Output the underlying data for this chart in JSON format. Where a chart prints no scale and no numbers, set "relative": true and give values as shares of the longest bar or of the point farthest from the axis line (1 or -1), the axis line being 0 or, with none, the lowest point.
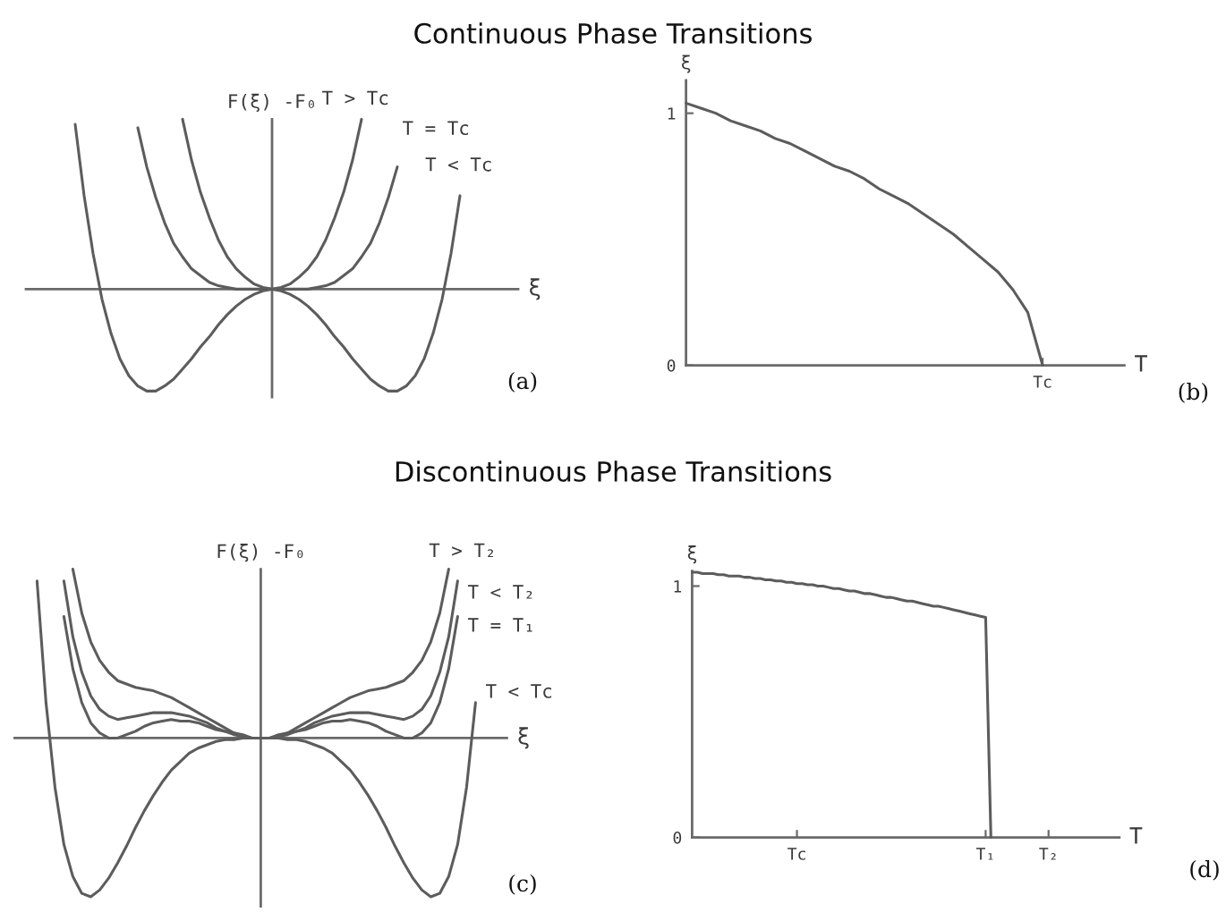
{
  "chart_data": [
    {
      "type": "line",
      "title": "Continuous Phase Transitions",
      "relative": true,
      "xlabel": "ξ",
      "ylabel": "F(ξ) -F₀",
      "annotations": [
        "(a)"
      ],
      "categories": [
        null,
        null,
        null,
        null,
        null,
        null,
        null,
        null,
        null,
        null,
        null,
        null,
        null,
        null,
        null,
        null,
        null,
        null,
        null,
        null,
        null,
        null,
        null,
        null,
        null,
        null,
        null,
        null,
        null,
        null,
        null,
        null,
        null,
        null,
        null,
        null,
        null,
        null,
        null,
        null,
        null,
        null,
        null,
        null,
        null,
        null,
        null,
        null,
        null,
        null,
        null,
        null,
        null,
        null,
        null
      ],
      "series": [
        {
          "name": "T > Tc",
          "color": "#5c5c5c",
          "values": [
            null,
            null,
            null,
            null,
            null,
            null,
            null,
            null,
            null,
            null,
            null,
            null,
            null,
            null,
            null,
            null,
            null,
            1.0,
            0.76,
            0.57,
            0.42,
            0.29,
            0.19,
            0.12,
            0.07,
            0.03,
            0.01,
            0,
            0.01,
            0.03,
            0.07,
            0.12,
            0.19,
            0.29,
            0.42,
            0.57,
            0.76,
            1.0,
            null,
            null,
            null,
            null,
            null,
            null,
            null,
            null,
            null,
            null,
            null,
            null,
            null,
            null,
            null,
            null,
            null
          ]
        },
        {
          "name": "T = Tc",
          "color": "#5c5c5c",
          "values": [
            null,
            null,
            null,
            null,
            null,
            null,
            null,
            null,
            null,
            null,
            null,
            null,
            0.95,
            0.72,
            0.54,
            0.39,
            0.27,
            0.19,
            0.12,
            0.08,
            0.04,
            0.02,
            0.01,
            0,
            0,
            0,
            0,
            0,
            0,
            0,
            0,
            0,
            0.01,
            0.02,
            0.04,
            0.08,
            0.12,
            0.19,
            0.27,
            0.39,
            0.54,
            0.72,
            null,
            null,
            null,
            null,
            null,
            null,
            null,
            null,
            null,
            null,
            null,
            null,
            null
          ]
        },
        {
          "name": "T < Tc",
          "color": "#5c5c5c",
          "values": [
            null,
            null,
            null,
            null,
            null,
            0.97,
            0.55,
            0.21,
            -0.06,
            -0.26,
            -0.41,
            -0.51,
            -0.57,
            -0.6,
            -0.6,
            -0.57,
            -0.53,
            -0.47,
            -0.41,
            -0.34,
            -0.28,
            -0.21,
            -0.15,
            -0.1,
            -0.06,
            -0.03,
            -0.01,
            0,
            -0.01,
            -0.03,
            -0.06,
            -0.1,
            -0.15,
            -0.21,
            -0.28,
            -0.34,
            -0.41,
            -0.47,
            -0.53,
            -0.57,
            -0.6,
            -0.6,
            -0.57,
            -0.51,
            -0.41,
            -0.26,
            -0.06,
            0.21,
            0.55,
            null,
            null,
            null,
            null,
            null,
            null
          ]
        }
      ]
    },
    {
      "type": "line",
      "xlabel": "T",
      "ylabel": "ξ",
      "annotations": [
        "(b)"
      ],
      "ylim": [
        0,
        1.13
      ],
      "yticks": [
        0,
        1
      ],
      "categories": [
        null,
        null,
        null,
        null,
        null,
        null,
        null,
        null,
        null,
        null,
        null,
        null,
        null,
        null,
        null,
        null,
        null,
        null,
        null,
        null,
        null,
        null,
        null,
        null,
        "Tc",
        null,
        null,
        null,
        null,
        null
      ],
      "series": [
        {
          "color": "#5c5c5c",
          "values": [
            1.04,
            1.02,
            1.0,
            0.97,
            0.95,
            0.93,
            0.9,
            0.88,
            0.85,
            0.82,
            0.79,
            0.77,
            0.74,
            0.7,
            0.67,
            0.64,
            0.6,
            0.56,
            0.52,
            0.47,
            0.42,
            0.37,
            0.3,
            0.21,
            0,
            null,
            null,
            null,
            null,
            null
          ]
        }
      ]
    },
    {
      "type": "line",
      "title": "Discontinuous Phase Transitions",
      "relative": true,
      "xlabel": "ξ",
      "ylabel": "F(ξ) -F₀",
      "annotations": [
        "(c)"
      ],
      "categories": [
        null,
        null,
        null,
        null,
        null,
        null,
        null,
        null,
        null,
        null,
        null,
        null,
        null,
        null,
        null,
        null,
        null,
        null,
        null,
        null,
        null,
        null,
        null,
        null,
        null,
        null,
        null,
        null,
        null,
        null,
        null,
        null,
        null,
        null,
        null,
        null,
        null,
        null,
        null,
        null,
        null,
        null,
        null,
        null,
        null,
        null,
        null,
        null,
        null,
        null,
        null,
        null,
        null,
        null,
        null
      ],
      "series": [
        {
          "name": "T > T₂",
          "color": "#5c5c5c",
          "values": [
            null,
            null,
            null,
            null,
            null,
            null,
            1.0,
            0.74,
            0.57,
            0.46,
            0.39,
            0.34,
            0.32,
            0.3,
            0.29,
            0.28,
            0.26,
            0.24,
            0.21,
            0.18,
            0.15,
            0.12,
            0.09,
            0.06,
            0.03,
            0.02,
            0,
            0,
            0,
            0.02,
            0.03,
            0.06,
            0.09,
            0.12,
            0.15,
            0.18,
            0.21,
            0.24,
            0.26,
            0.28,
            0.29,
            0.3,
            0.32,
            0.34,
            0.39,
            0.46,
            0.57,
            0.74,
            1.0,
            null,
            null,
            null,
            null,
            null,
            null
          ]
        },
        {
          "name": "T < T₂",
          "color": "#5c5c5c",
          "values": [
            null,
            null,
            null,
            null,
            null,
            0.93,
            0.6,
            0.39,
            0.25,
            0.17,
            0.13,
            0.11,
            0.12,
            0.13,
            0.14,
            0.15,
            0.15,
            0.15,
            0.14,
            0.13,
            0.11,
            0.09,
            0.06,
            0.04,
            0.03,
            0.01,
            0,
            0,
            0,
            0.01,
            0.03,
            0.04,
            0.06,
            0.09,
            0.11,
            0.13,
            0.14,
            0.15,
            0.15,
            0.15,
            0.14,
            0.13,
            0.12,
            0.11,
            0.13,
            0.17,
            0.25,
            0.39,
            0.6,
            0.93,
            null,
            null,
            null,
            null,
            null
          ]
        },
        {
          "name": "T = T₁",
          "color": "#5c5c5c",
          "values": [
            null,
            null,
            null,
            null,
            null,
            0.72,
            0.41,
            0.21,
            0.09,
            0.03,
            0,
            0,
            0.02,
            0.04,
            0.07,
            0.09,
            0.1,
            0.11,
            0.1,
            0.1,
            0.09,
            0.07,
            0.05,
            0.04,
            0.02,
            0.01,
            0,
            0,
            0,
            0.01,
            0.02,
            0.04,
            0.05,
            0.07,
            0.09,
            0.1,
            0.1,
            0.11,
            0.1,
            0.09,
            0.07,
            0.04,
            0.02,
            0,
            0,
            0.03,
            0.09,
            0.21,
            0.41,
            0.72,
            null,
            null,
            null,
            null,
            null
          ]
        },
        {
          "name": "T < Tc",
          "color": "#5c5c5c",
          "values": [
            null,
            null,
            0.93,
            0.21,
            -0.29,
            -0.63,
            -0.82,
            -0.92,
            -0.94,
            -0.9,
            -0.83,
            -0.74,
            -0.64,
            -0.53,
            -0.43,
            -0.34,
            -0.26,
            -0.19,
            -0.14,
            -0.09,
            -0.06,
            -0.04,
            -0.02,
            -0.01,
            -0.01,
            0,
            0,
            0,
            0,
            0,
            -0.01,
            -0.01,
            -0.02,
            -0.04,
            -0.06,
            -0.09,
            -0.14,
            -0.19,
            -0.26,
            -0.34,
            -0.43,
            -0.53,
            -0.64,
            -0.74,
            -0.83,
            -0.9,
            -0.94,
            -0.92,
            -0.82,
            -0.63,
            -0.29,
            0.21,
            null,
            null,
            null
          ]
        }
      ]
    },
    {
      "type": "line",
      "xlabel": "T",
      "ylabel": "ξ",
      "annotations": [
        "(d)"
      ],
      "ylim": [
        0,
        1.06
      ],
      "yticks": [
        0,
        1
      ],
      "categories": [
        null,
        null,
        null,
        null,
        null,
        null,
        null,
        null,
        null,
        null,
        null,
        null,
        null,
        null,
        null,
        null,
        null,
        null,
        null,
        null,
        "Tc",
        null,
        null,
        null,
        null,
        null,
        null,
        null,
        null,
        null,
        null,
        null,
        null,
        null,
        null,
        null,
        null,
        null,
        null,
        null,
        null,
        null,
        null,
        null,
        null,
        null,
        null,
        null,
        null,
        null,
        null,
        null,
        null,
        null,
        null,
        null,
        "T₁",
        null,
        null,
        null,
        null,
        null,
        null,
        null,
        null,
        null,
        null,
        null,
        "T₂",
        null,
        null,
        null,
        null,
        null,
        null,
        null,
        null,
        null,
        null,
        null,
        null,
        null
      ],
      "series": [
        {
          "color": "#5c5c5c",
          "values": [
            1.055,
            1.055,
            1.05,
            1.05,
            1.05,
            1.045,
            1.045,
            1.04,
            1.04,
            1.04,
            1.035,
            1.035,
            1.03,
            1.03,
            1.025,
            1.025,
            1.02,
            1.02,
            1.015,
            1.015,
            1.01,
            1.01,
            1.005,
            1.005,
            1.0,
            1.0,
            0.995,
            0.99,
            0.99,
            0.985,
            0.98,
            0.98,
            0.975,
            0.97,
            0.97,
            0.965,
            0.96,
            0.955,
            0.955,
            0.95,
            0.945,
            0.94,
            0.94,
            0.935,
            0.93,
            0.925,
            0.92,
            0.92,
            0.915,
            0.91,
            0.905,
            0.9,
            0.895,
            0.89,
            0.885,
            0.88,
            0.875,
            0,
            null,
            null,
            null,
            null,
            null,
            null,
            null,
            null,
            null,
            null,
            null,
            null,
            null,
            null,
            null,
            null,
            null,
            null,
            null,
            null,
            null,
            null,
            null,
            null
          ]
        }
      ]
    }
  ]
}
